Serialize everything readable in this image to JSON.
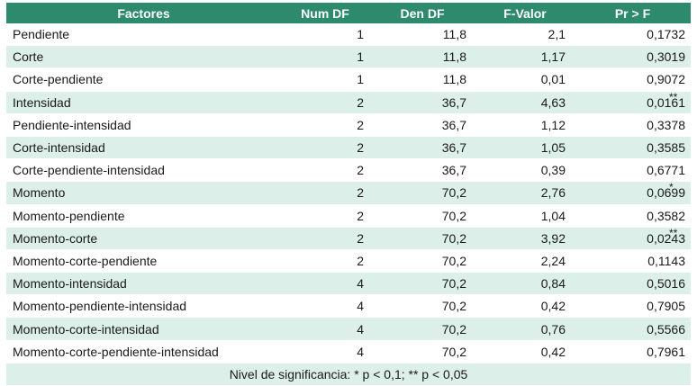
{
  "table": {
    "headers": [
      "Factores",
      "Num DF",
      "Den DF",
      "F-Valor",
      "Pr > F"
    ],
    "rows": [
      {
        "factor": "Pendiente",
        "num_df": "1",
        "den_df": "11,8",
        "f_valor": "2,1",
        "pr_f": "0,1732",
        "sig": ""
      },
      {
        "factor": "Corte",
        "num_df": "1",
        "den_df": "11,8",
        "f_valor": "1,17",
        "pr_f": "0,3019",
        "sig": ""
      },
      {
        "factor": "Corte-pendiente",
        "num_df": "1",
        "den_df": "11,8",
        "f_valor": "0,01",
        "pr_f": "0,9072",
        "sig": ""
      },
      {
        "factor": "Intensidad",
        "num_df": "2",
        "den_df": "36,7",
        "f_valor": "4,63",
        "pr_f": "0,0161",
        "sig": "**"
      },
      {
        "factor": "Pendiente-intensidad",
        "num_df": "2",
        "den_df": "36,7",
        "f_valor": "1,12",
        "pr_f": "0,3378",
        "sig": ""
      },
      {
        "factor": "Corte-intensidad",
        "num_df": "2",
        "den_df": "36,7",
        "f_valor": "1,05",
        "pr_f": "0,3585",
        "sig": ""
      },
      {
        "factor": "Corte-pendiente-intensidad",
        "num_df": "2",
        "den_df": "36,7",
        "f_valor": "0,39",
        "pr_f": "0,6771",
        "sig": ""
      },
      {
        "factor": "Momento",
        "num_df": "2",
        "den_df": "70,2",
        "f_valor": "2,76",
        "pr_f": "0,0699",
        "sig": "*"
      },
      {
        "factor": "Momento-pendiente",
        "num_df": "2",
        "den_df": "70,2",
        "f_valor": "1,04",
        "pr_f": "0,3582",
        "sig": ""
      },
      {
        "factor": "Momento-corte",
        "num_df": "2",
        "den_df": "70,2",
        "f_valor": "3,92",
        "pr_f": "0,0243",
        "sig": "**"
      },
      {
        "factor": "Momento-corte-pendiente",
        "num_df": "2",
        "den_df": "70,2",
        "f_valor": "2,24",
        "pr_f": "0,1143",
        "sig": ""
      },
      {
        "factor": "Momento-intensidad",
        "num_df": "4",
        "den_df": "70,2",
        "f_valor": "0,84",
        "pr_f": "0,5016",
        "sig": ""
      },
      {
        "factor": "Momento-pendiente-intensidad",
        "num_df": "4",
        "den_df": "70,2",
        "f_valor": "0,42",
        "pr_f": "0,7905",
        "sig": ""
      },
      {
        "factor": "Momento-corte-intensidad",
        "num_df": "4",
        "den_df": "70,2",
        "f_valor": "0,76",
        "pr_f": "0,5566",
        "sig": ""
      },
      {
        "factor": "Momento-corte-pendiente-intensidad",
        "num_df": "4",
        "den_df": "70,2",
        "f_valor": "0,42",
        "pr_f": "0,7961",
        "sig": ""
      }
    ],
    "footnote": "Nivel de significancia: * p < 0,1; ** p < 0,05"
  },
  "colors": {
    "header_bg": "#2e8a6c",
    "header_text": "#ffffff",
    "stripe_bg": "#dcefe8"
  }
}
